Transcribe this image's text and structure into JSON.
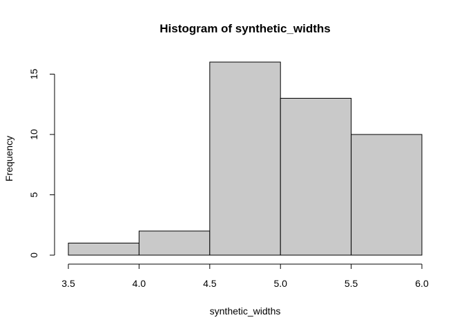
{
  "chart_data": {
    "type": "bar",
    "title": "Histogram of synthetic_widths",
    "xlabel": "synthetic_widths",
    "ylabel": "Frequency",
    "bins": [
      {
        "from": 3.5,
        "to": 4.0,
        "count": 1
      },
      {
        "from": 4.0,
        "to": 4.5,
        "count": 2
      },
      {
        "from": 4.5,
        "to": 5.0,
        "count": 16
      },
      {
        "from": 5.0,
        "to": 5.5,
        "count": 13
      },
      {
        "from": 5.5,
        "to": 6.0,
        "count": 10
      }
    ],
    "xlim": [
      3.5,
      6.0
    ],
    "ylim": [
      0,
      16
    ],
    "xticks": [
      "3.5",
      "4.0",
      "4.5",
      "5.0",
      "5.5",
      "6.0"
    ],
    "yticks": [
      "0",
      "5",
      "10",
      "15"
    ],
    "bar_color": "#c9c9c9",
    "border_color": "#000000",
    "grid": false,
    "legend": "none"
  }
}
